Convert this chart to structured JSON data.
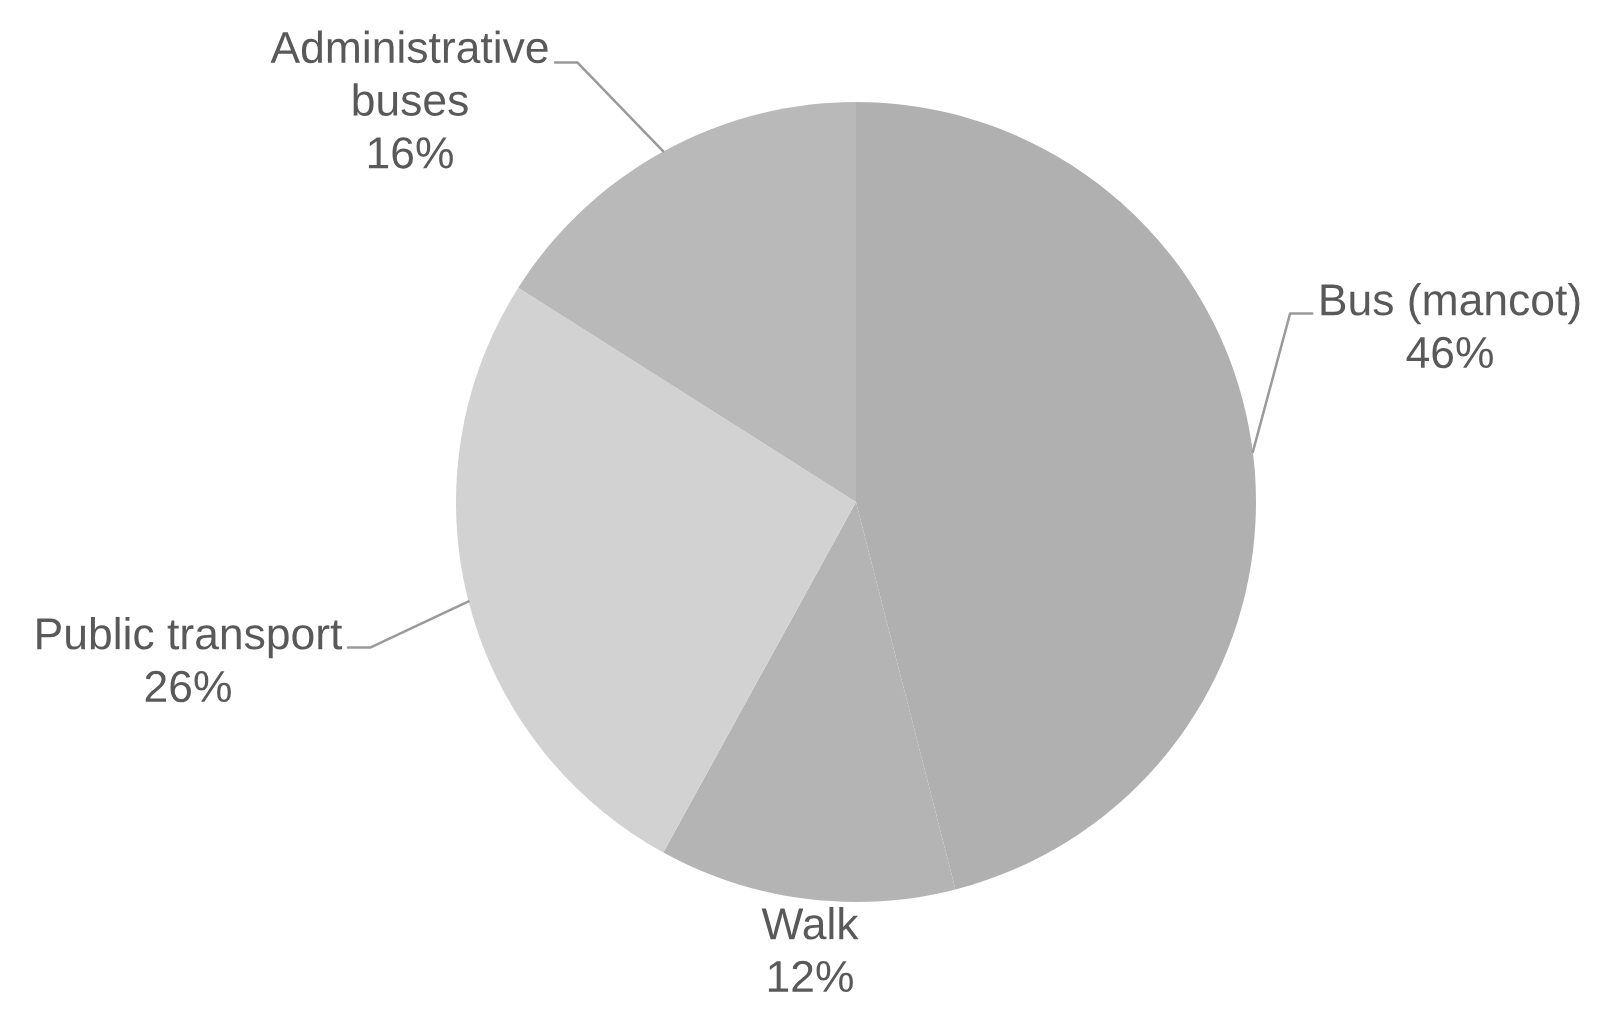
{
  "chart_data": {
    "type": "pie",
    "categories": [
      "Bus (mancot)",
      "Walk",
      "Public transport",
      "Administrative buses"
    ],
    "values": [
      46,
      12,
      26,
      16
    ],
    "value_labels": [
      "46%",
      "12%",
      "26%",
      "16%"
    ],
    "colors": [
      "#b0b0b0",
      "#b4b4b4",
      "#d2d2d2",
      "#b9b9b9"
    ]
  }
}
